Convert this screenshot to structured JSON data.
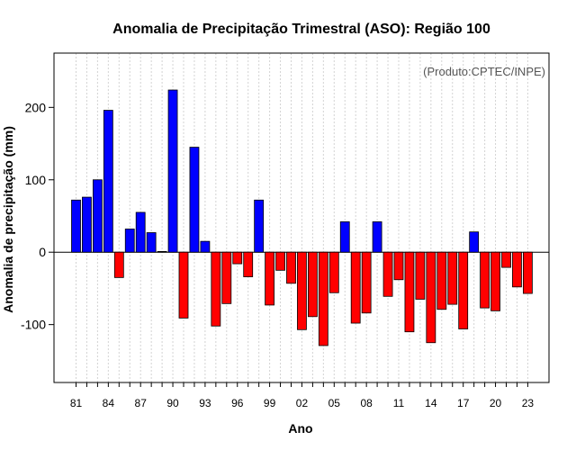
{
  "chart_data": {
    "type": "bar",
    "title": "Anomalia de Precipitação Trimestral (ASO): Região 100",
    "xlabel": "Ano",
    "ylabel": "Anomalia de precipitação (mm)",
    "annotation": "(Produto:CPTEC/INPE)",
    "ylim": [
      -180,
      275
    ],
    "y_ticks": [
      -100,
      0,
      100,
      200
    ],
    "x_tick_labels": [
      "81",
      "84",
      "87",
      "90",
      "93",
      "96",
      "99",
      "02",
      "05",
      "08",
      "11",
      "14",
      "17",
      "20",
      "23"
    ],
    "positive_color": "#0000FF",
    "negative_color": "#FF0000",
    "categories": [
      "1981",
      "1982",
      "1983",
      "1984",
      "1985",
      "1986",
      "1987",
      "1988",
      "1989",
      "1990",
      "1991",
      "1992",
      "1993",
      "1994",
      "1995",
      "1996",
      "1997",
      "1998",
      "1999",
      "2000",
      "2001",
      "2002",
      "2003",
      "2004",
      "2005",
      "2006",
      "2007",
      "2008",
      "2009",
      "2010",
      "2011",
      "2012",
      "2013",
      "2014",
      "2015",
      "2016",
      "2017",
      "2018",
      "2019",
      "2020",
      "2021",
      "2022",
      "2023"
    ],
    "values": [
      72,
      76,
      100,
      196,
      -35,
      32,
      55,
      27,
      1,
      224,
      -91,
      145,
      15,
      -102,
      -71,
      -16,
      -34,
      72,
      -73,
      -25,
      -43,
      -107,
      -89,
      -129,
      -56,
      42,
      -98,
      -84,
      42,
      -61,
      -38,
      -110,
      -65,
      -125,
      -79,
      -72,
      -106,
      28,
      -77,
      -81,
      -21,
      -48,
      -57
    ]
  }
}
